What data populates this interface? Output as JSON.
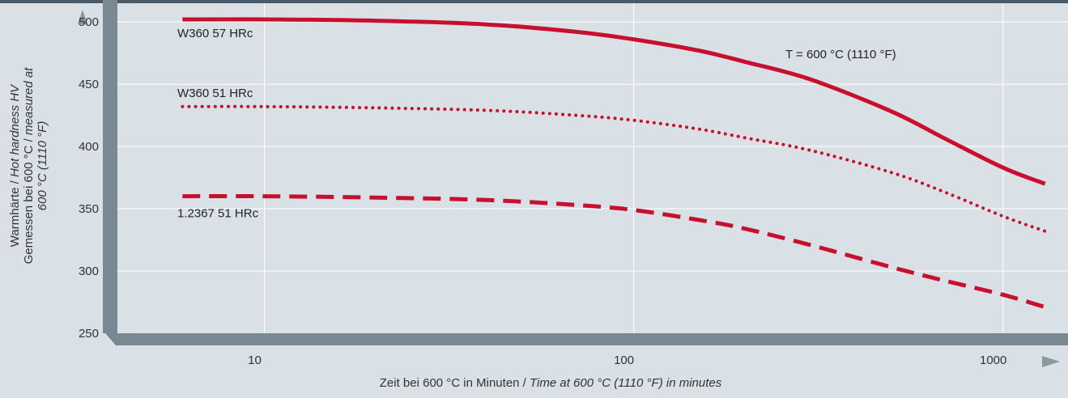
{
  "chart_data": {
    "type": "line",
    "x_scale": "log",
    "xlim": [
      4,
      1500
    ],
    "ylim": [
      250,
      515
    ],
    "x_ticks": [
      10,
      100,
      1000
    ],
    "y_ticks": [
      250,
      300,
      350,
      400,
      450,
      500
    ],
    "x_tick_labels": [
      "10",
      "100",
      "1000"
    ],
    "y_tick_labels": [
      "250",
      "300",
      "350",
      "400",
      "450",
      "500"
    ],
    "xlabel_plain": "Zeit bei 600 °C in Minuten / ",
    "xlabel_italic": "Time at 600 °C (1110 °F) in minutes",
    "ylabel_line1_plain": "Warmhärte / ",
    "ylabel_line1_italic": "Hot hardness HV",
    "ylabel_line2_plain": "Gemessen bei 600 °C / ",
    "ylabel_line2_italic": "measured at",
    "ylabel_line3_italic": "600 °C (1110 °F)",
    "annotation": "T = 600 °C (1110 °F)",
    "grid": true,
    "colors": {
      "series": "#c8102e",
      "background": "#d9e1e6",
      "grid": "#ffffff",
      "frame": "#4a5a66"
    },
    "series": [
      {
        "name": "W360 57 HRc",
        "style": "solid",
        "x": [
          6,
          10,
          20,
          40,
          70,
          100,
          150,
          200,
          300,
          500,
          700,
          1000,
          1300
        ],
        "y": [
          502,
          502,
          501,
          498,
          492,
          486,
          477,
          468,
          454,
          428,
          406,
          383,
          370
        ]
      },
      {
        "name": "W360 51 HRc",
        "style": "dotted",
        "x": [
          6,
          10,
          20,
          40,
          70,
          100,
          150,
          200,
          300,
          500,
          700,
          1000,
          1300
        ],
        "y": [
          432,
          432,
          431,
          429,
          425,
          421,
          414,
          407,
          397,
          379,
          363,
          344,
          332
        ]
      },
      {
        "name": "1.2367 51 HRc",
        "style": "dashed",
        "x": [
          6,
          10,
          20,
          40,
          70,
          100,
          150,
          200,
          300,
          500,
          700,
          1000,
          1300
        ],
        "y": [
          360,
          360,
          359,
          357,
          353,
          349,
          341,
          334,
          321,
          303,
          292,
          281,
          271
        ]
      }
    ]
  }
}
